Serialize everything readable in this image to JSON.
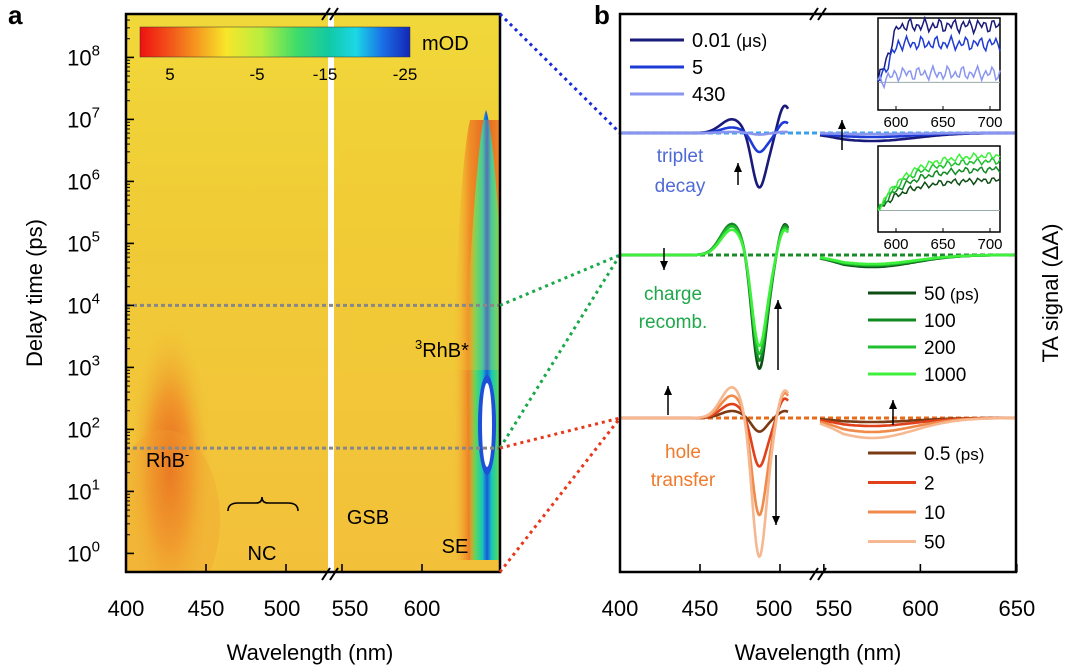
{
  "chart_data": [
    {
      "id": "a",
      "panel_label": "a",
      "type": "heatmap",
      "xlabel": "Wavelength (nm)",
      "ylabel": "Delay time (ps)",
      "x_ticks": [
        "400",
        "450",
        "500",
        "550",
        "600"
      ],
      "y_ticks": [
        {
          "base": "10",
          "exp": "0"
        },
        {
          "base": "10",
          "exp": "1"
        },
        {
          "base": "10",
          "exp": "2"
        },
        {
          "base": "10",
          "exp": "3"
        },
        {
          "base": "10",
          "exp": "4"
        },
        {
          "base": "10",
          "exp": "5"
        },
        {
          "base": "10",
          "exp": "6"
        },
        {
          "base": "10",
          "exp": "7"
        },
        {
          "base": "10",
          "exp": "8"
        }
      ],
      "xlim": [
        400,
        640
      ],
      "x_break": "between 505 and 545 nm",
      "ylim_log10": [
        -0.3,
        8.7
      ],
      "colorbar": {
        "title": "mOD",
        "tick_labels": [
          "5",
          "-5",
          "-15",
          "-25"
        ],
        "range": [
          10,
          -25
        ]
      },
      "annotations": {
        "rhb_minus": "RhB",
        "rhb_minus_sup": "-",
        "rhb_triplet_sup": "3",
        "rhb_triplet": "RhB*",
        "nc": "NC",
        "gsb": "GSB",
        "se": "SE"
      },
      "guide_lines_ps": [
        50,
        10000
      ]
    },
    {
      "id": "b",
      "panel_label": "b",
      "type": "line",
      "xlabel": "Wavelength (nm)",
      "ylabel": "TA signal (ΔA)",
      "x_ticks": [
        "400",
        "450",
        "500",
        "550",
        "600",
        "650"
      ],
      "xlim": [
        400,
        650
      ],
      "x_break": "between 505 and 548 nm",
      "groups": [
        {
          "name": "triplet decay",
          "label_line1": "triplet",
          "label_line2": "decay",
          "color": "#4f6ad4",
          "legend_unit": "(μs)",
          "series": [
            {
              "name": "0.01",
              "color": "#1a1a7a"
            },
            {
              "name": "5",
              "color": "#1e3bd6"
            },
            {
              "name": "430",
              "color": "#8a95f0"
            }
          ]
        },
        {
          "name": "charge recomb.",
          "label_line1": "charge",
          "label_line2": "recomb.",
          "color": "#1fa84a",
          "legend_unit": "(ps)",
          "series": [
            {
              "name": "50",
              "color": "#0d4d14"
            },
            {
              "name": "100",
              "color": "#118a22"
            },
            {
              "name": "200",
              "color": "#20c030"
            },
            {
              "name": "1000",
              "color": "#3ef03c"
            }
          ]
        },
        {
          "name": "hole transfer",
          "label_line1": "hole",
          "label_line2": "transfer",
          "color": "#f07a2a",
          "legend_unit": "(ps)",
          "series": [
            {
              "name": "0.5",
              "color": "#7a3a14"
            },
            {
              "name": "2",
              "color": "#e0401a"
            },
            {
              "name": "10",
              "color": "#f08a4a"
            },
            {
              "name": "50",
              "color": "#f6b890"
            }
          ]
        }
      ],
      "insets": [
        {
          "group": "triplet decay",
          "x_ticks": [
            "600",
            "650",
            "700"
          ]
        },
        {
          "group": "charge recomb.",
          "x_ticks": [
            "600",
            "650",
            "700"
          ]
        }
      ]
    }
  ]
}
